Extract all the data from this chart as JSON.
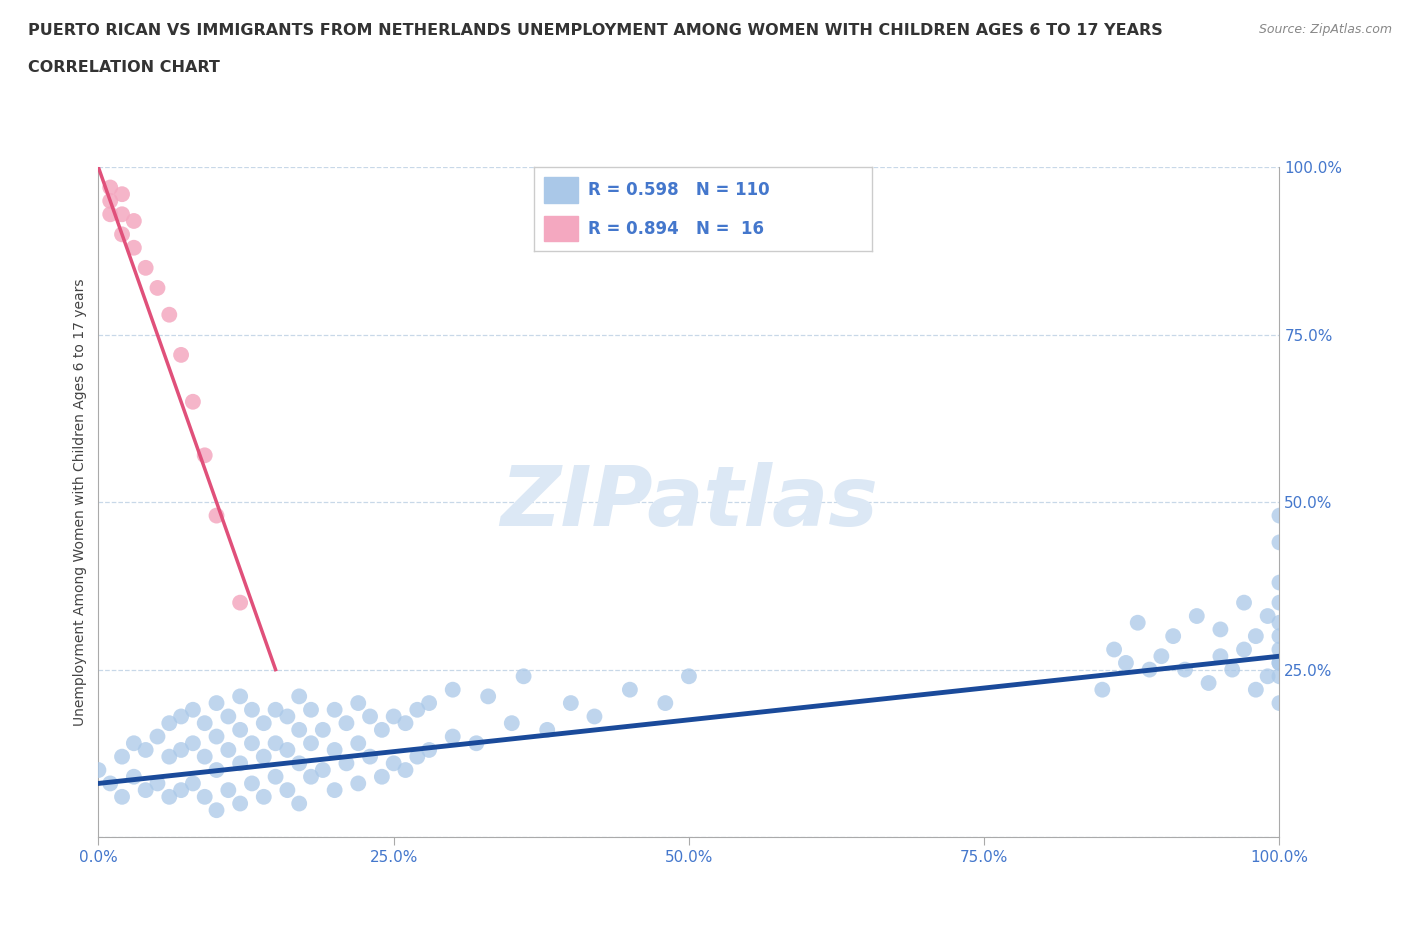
{
  "title_line1": "PUERTO RICAN VS IMMIGRANTS FROM NETHERLANDS UNEMPLOYMENT AMONG WOMEN WITH CHILDREN AGES 6 TO 17 YEARS",
  "title_line2": "CORRELATION CHART",
  "source": "Source: ZipAtlas.com",
  "ylabel": "Unemployment Among Women with Children Ages 6 to 17 years",
  "xlim": [
    0.0,
    1.0
  ],
  "ylim": [
    0.0,
    1.0
  ],
  "xticks": [
    0.0,
    0.25,
    0.5,
    0.75,
    1.0
  ],
  "yticks": [
    0.0,
    0.25,
    0.5,
    0.75,
    1.0
  ],
  "xticklabels": [
    "0.0%",
    "25.0%",
    "50.0%",
    "75.0%",
    "100.0%"
  ],
  "right_yticklabels": [
    "",
    "25.0%",
    "50.0%",
    "75.0%",
    "100.0%"
  ],
  "blue_R": 0.598,
  "blue_N": 110,
  "pink_R": 0.894,
  "pink_N": 16,
  "blue_color": "#aac8e8",
  "blue_line_color": "#1a4a9a",
  "pink_color": "#f4a8c0",
  "pink_line_color": "#e0507a",
  "watermark_text": "ZIPatlas",
  "watermark_color": "#dce8f5",
  "background_color": "#ffffff",
  "grid_color": "#c8d8e8",
  "title_color": "#333333",
  "tick_label_color": "#4477cc",
  "blue_scatter_x": [
    0.0,
    0.01,
    0.02,
    0.02,
    0.03,
    0.03,
    0.04,
    0.04,
    0.05,
    0.05,
    0.06,
    0.06,
    0.06,
    0.07,
    0.07,
    0.07,
    0.08,
    0.08,
    0.08,
    0.09,
    0.09,
    0.09,
    0.1,
    0.1,
    0.1,
    0.1,
    0.11,
    0.11,
    0.11,
    0.12,
    0.12,
    0.12,
    0.12,
    0.13,
    0.13,
    0.13,
    0.14,
    0.14,
    0.14,
    0.15,
    0.15,
    0.15,
    0.16,
    0.16,
    0.16,
    0.17,
    0.17,
    0.17,
    0.17,
    0.18,
    0.18,
    0.18,
    0.19,
    0.19,
    0.2,
    0.2,
    0.2,
    0.21,
    0.21,
    0.22,
    0.22,
    0.22,
    0.23,
    0.23,
    0.24,
    0.24,
    0.25,
    0.25,
    0.26,
    0.26,
    0.27,
    0.27,
    0.28,
    0.28,
    0.3,
    0.3,
    0.32,
    0.33,
    0.35,
    0.36,
    0.38,
    0.4,
    0.42,
    0.45,
    0.48,
    0.5,
    0.85,
    0.86,
    0.87,
    0.88,
    0.89,
    0.9,
    0.91,
    0.92,
    0.93,
    0.94,
    0.95,
    0.95,
    0.96,
    0.97,
    0.97,
    0.98,
    0.98,
    0.99,
    0.99,
    1.0,
    1.0,
    1.0,
    1.0,
    1.0,
    1.0,
    1.0,
    1.0,
    1.0,
    1.0,
    1.0
  ],
  "blue_scatter_y": [
    0.1,
    0.08,
    0.12,
    0.06,
    0.09,
    0.14,
    0.07,
    0.13,
    0.08,
    0.15,
    0.06,
    0.12,
    0.17,
    0.07,
    0.13,
    0.18,
    0.08,
    0.14,
    0.19,
    0.06,
    0.12,
    0.17,
    0.04,
    0.1,
    0.15,
    0.2,
    0.07,
    0.13,
    0.18,
    0.05,
    0.11,
    0.16,
    0.21,
    0.08,
    0.14,
    0.19,
    0.06,
    0.12,
    0.17,
    0.09,
    0.14,
    0.19,
    0.07,
    0.13,
    0.18,
    0.05,
    0.11,
    0.16,
    0.21,
    0.09,
    0.14,
    0.19,
    0.1,
    0.16,
    0.07,
    0.13,
    0.19,
    0.11,
    0.17,
    0.08,
    0.14,
    0.2,
    0.12,
    0.18,
    0.09,
    0.16,
    0.11,
    0.18,
    0.1,
    0.17,
    0.12,
    0.19,
    0.13,
    0.2,
    0.15,
    0.22,
    0.14,
    0.21,
    0.17,
    0.24,
    0.16,
    0.2,
    0.18,
    0.22,
    0.2,
    0.24,
    0.22,
    0.28,
    0.26,
    0.32,
    0.25,
    0.27,
    0.3,
    0.25,
    0.33,
    0.23,
    0.27,
    0.31,
    0.25,
    0.28,
    0.35,
    0.22,
    0.3,
    0.24,
    0.33,
    0.2,
    0.26,
    0.3,
    0.35,
    0.24,
    0.28,
    0.32,
    0.38,
    0.26,
    0.44,
    0.48
  ],
  "pink_scatter_x": [
    0.01,
    0.01,
    0.01,
    0.02,
    0.02,
    0.02,
    0.03,
    0.03,
    0.04,
    0.05,
    0.06,
    0.07,
    0.08,
    0.09,
    0.1,
    0.12
  ],
  "pink_scatter_y": [
    0.93,
    0.95,
    0.97,
    0.9,
    0.93,
    0.96,
    0.88,
    0.92,
    0.85,
    0.82,
    0.78,
    0.72,
    0.65,
    0.57,
    0.48,
    0.35
  ],
  "blue_trend_x": [
    0.0,
    1.0
  ],
  "blue_trend_y": [
    0.08,
    0.27
  ],
  "pink_trend_x": [
    0.0,
    0.15
  ],
  "pink_trend_y": [
    1.0,
    0.25
  ]
}
